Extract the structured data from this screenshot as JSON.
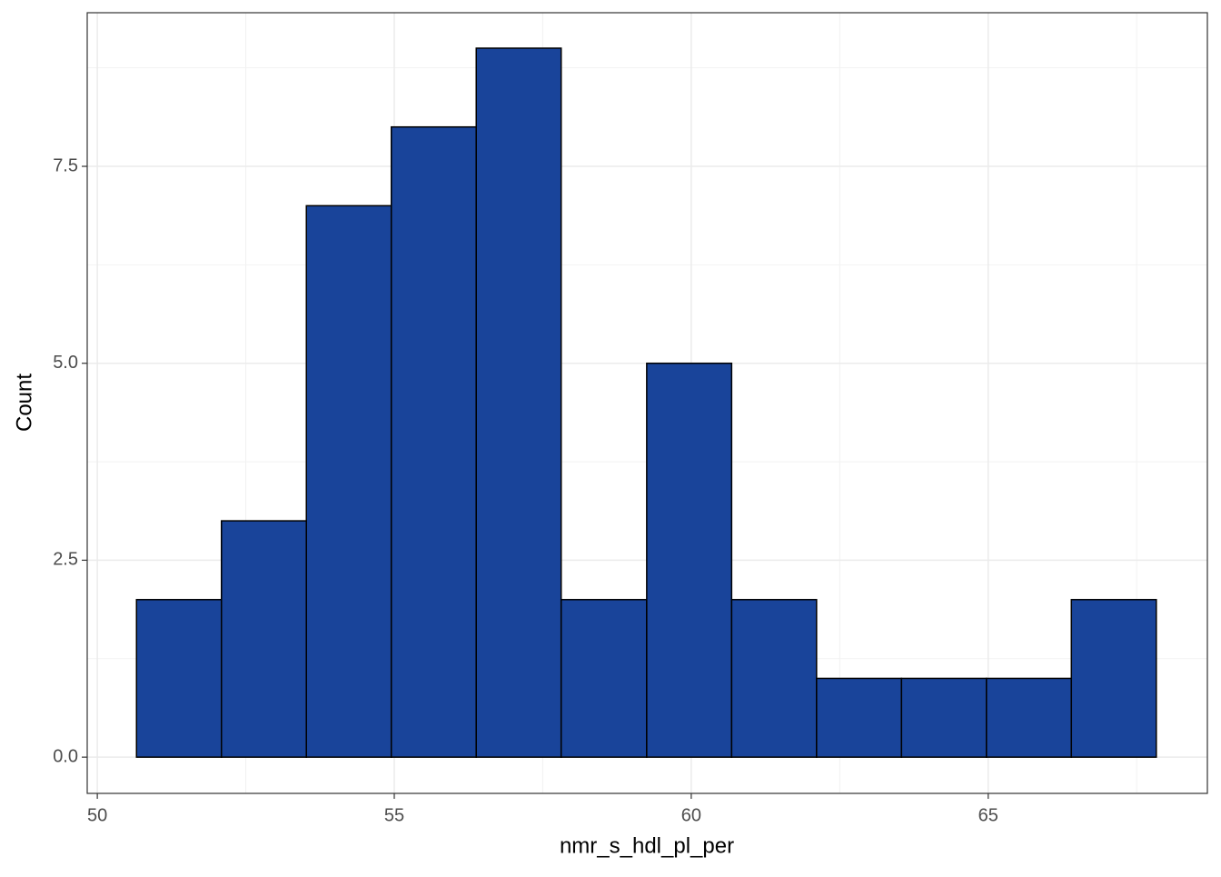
{
  "chart_data": {
    "type": "histogram",
    "x_label": "nmr_s_hdl_pl_per",
    "y_label": "Count",
    "bins": [
      50.66,
      52.09,
      53.52,
      54.95,
      56.38,
      57.81,
      59.25,
      60.68,
      62.11,
      63.54,
      64.97,
      66.4,
      67.83
    ],
    "counts": [
      2,
      3,
      7,
      8,
      9,
      2,
      5,
      2,
      1,
      1,
      1,
      2
    ],
    "color": "#19449a",
    "edge_color": "#000000",
    "xlim": [
      49.83,
      68.69
    ],
    "ylim": [
      -0.46,
      9.45
    ],
    "xticks": [
      50,
      55,
      60,
      65
    ],
    "yticks": [
      {
        "value": 0,
        "label": "0.0"
      },
      {
        "value": 2.5,
        "label": "2.5"
      },
      {
        "value": 5,
        "label": "5.0"
      },
      {
        "value": 7.5,
        "label": "7.5"
      }
    ],
    "minor_xgrid": [
      52.5,
      57.5,
      62.5,
      67.5
    ],
    "minor_ygrid": [
      1.25,
      3.75,
      6.25,
      8.75
    ],
    "grid": true
  }
}
